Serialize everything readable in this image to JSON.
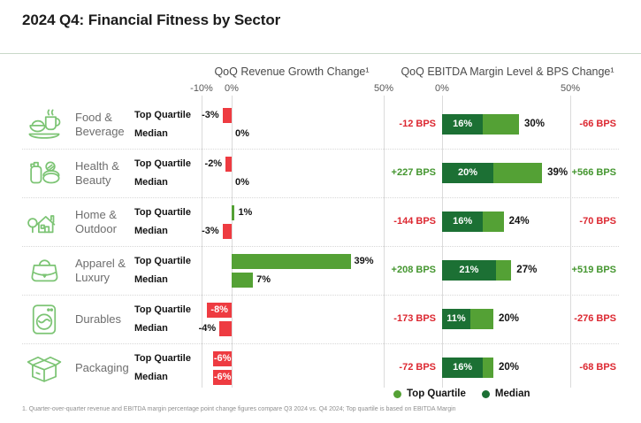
{
  "title": "2024 Q4: Financial Fitness by Sector",
  "headers": {
    "left": "QoQ Revenue Growth Change¹",
    "right": "QoQ EBITDA Margin Level & BPS Change¹"
  },
  "axis": {
    "left_ticks": [
      "-10%",
      "0%",
      "50%"
    ],
    "right_ticks": [
      "0%",
      "50%"
    ]
  },
  "series_labels": {
    "top": "Top Quartile",
    "bottom": "Median"
  },
  "legend": {
    "top_quartile": "Top Quartile",
    "median": "Median"
  },
  "footnote": "1. Quarter-over-quarter revenue and EBITDA margin percentage point change figures compare Q3 2024 vs. Q4 2024; Top quartile is based on EBITDA Margin",
  "colors": {
    "positive_bar": "#54a135",
    "negative_bar": "#ee3b41",
    "median_segment": "#1c7034",
    "top_quartile_segment": "#54a135",
    "positive_text": "#44962f",
    "negative_text": "#dc2730",
    "icon_stroke": "#7cc474"
  },
  "rows": [
    {
      "sector": "Food & Beverage",
      "sector_lines": [
        "Food &",
        "Beverage"
      ],
      "icon": "food-beverage",
      "revenue": {
        "top_quartile": {
          "value": -3,
          "label": "-3%",
          "inside": false
        },
        "median": {
          "value": 0,
          "label": "0%",
          "inside": false
        }
      },
      "ebitda": {
        "median": 16,
        "median_label": "16%",
        "top_quartile": 30,
        "top_quartile_label": "30%",
        "bps_left": {
          "text": "-12 BPS",
          "sign": "negative"
        },
        "bps_right": {
          "text": "-66 BPS",
          "sign": "negative"
        }
      }
    },
    {
      "sector": "Health & Beauty",
      "sector_lines": [
        "Health &",
        "Beauty"
      ],
      "icon": "health-beauty",
      "revenue": {
        "top_quartile": {
          "value": -2,
          "label": "-2%",
          "inside": false
        },
        "median": {
          "value": 0,
          "label": "0%",
          "inside": false
        }
      },
      "ebitda": {
        "median": 20,
        "median_label": "20%",
        "top_quartile": 39,
        "top_quartile_label": "39%",
        "bps_left": {
          "text": "+227 BPS",
          "sign": "positive"
        },
        "bps_right": {
          "text": "+566 BPS",
          "sign": "positive"
        }
      }
    },
    {
      "sector": "Home & Outdoor",
      "sector_lines": [
        "Home &",
        "Outdoor"
      ],
      "icon": "home-outdoor",
      "revenue": {
        "top_quartile": {
          "value": 1,
          "label": "1%",
          "inside": false
        },
        "median": {
          "value": -3,
          "label": "-3%",
          "inside": false
        }
      },
      "ebitda": {
        "median": 16,
        "median_label": "16%",
        "top_quartile": 24,
        "top_quartile_label": "24%",
        "bps_left": {
          "text": "-144 BPS",
          "sign": "negative"
        },
        "bps_right": {
          "text": "-70 BPS",
          "sign": "negative"
        }
      }
    },
    {
      "sector": "Apparel & Luxury",
      "sector_lines": [
        "Apparel &",
        "Luxury"
      ],
      "icon": "apparel-luxury",
      "revenue": {
        "top_quartile": {
          "value": 39,
          "label": "39%",
          "inside": false
        },
        "median": {
          "value": 7,
          "label": "7%",
          "inside": false
        }
      },
      "ebitda": {
        "median": 21,
        "median_label": "21%",
        "top_quartile": 27,
        "top_quartile_label": "27%",
        "bps_left": {
          "text": "+208 BPS",
          "sign": "positive"
        },
        "bps_right": {
          "text": "+519 BPS",
          "sign": "positive"
        }
      }
    },
    {
      "sector": "Durables",
      "sector_lines": [
        "Durables"
      ],
      "icon": "durables",
      "revenue": {
        "top_quartile": {
          "value": -8,
          "label": "-8%",
          "inside": true
        },
        "median": {
          "value": -4,
          "label": "-4%",
          "inside": false
        }
      },
      "ebitda": {
        "median": 11,
        "median_label": "11%",
        "top_quartile": 20,
        "top_quartile_label": "20%",
        "bps_left": {
          "text": "-173 BPS",
          "sign": "negative"
        },
        "bps_right": {
          "text": "-276 BPS",
          "sign": "negative"
        }
      }
    },
    {
      "sector": "Packaging",
      "sector_lines": [
        "Packaging"
      ],
      "icon": "packaging",
      "revenue": {
        "top_quartile": {
          "value": -6,
          "label": "-6%",
          "inside": true
        },
        "median": {
          "value": -6,
          "label": "-6%",
          "inside": true
        }
      },
      "ebitda": {
        "median": 16,
        "median_label": "16%",
        "top_quartile": 20,
        "top_quartile_label": "20%",
        "bps_left": {
          "text": "-72 BPS",
          "sign": "negative"
        },
        "bps_right": {
          "text": "-68 BPS",
          "sign": "negative"
        }
      }
    }
  ],
  "chart_data": [
    {
      "type": "bar",
      "title": "QoQ Revenue Growth Change¹",
      "orientation": "horizontal",
      "unit": "%",
      "axis_ticks": [
        -10,
        0,
        50
      ],
      "axis_range": [
        -10,
        50
      ],
      "grid": "vertical-lines-at-ticks",
      "categories": [
        "Food & Beverage",
        "Health & Beauty",
        "Home & Outdoor",
        "Apparel & Luxury",
        "Durables",
        "Packaging"
      ],
      "series": [
        {
          "name": "Top Quartile",
          "values": [
            -3,
            -2,
            1,
            39,
            -8,
            -6
          ]
        },
        {
          "name": "Median",
          "values": [
            0,
            0,
            -3,
            7,
            -4,
            -6
          ]
        }
      ],
      "positive_color": "#54a135",
      "negative_color": "#ee3b41"
    },
    {
      "type": "bar",
      "title": "QoQ EBITDA Margin Level & BPS Change¹",
      "orientation": "horizontal",
      "unit": "%",
      "axis_ticks": [
        0,
        50
      ],
      "axis_range": [
        0,
        60
      ],
      "grid": "vertical-lines-at-ticks",
      "categories": [
        "Food & Beverage",
        "Health & Beauty",
        "Home & Outdoor",
        "Apparel & Luxury",
        "Durables",
        "Packaging"
      ],
      "series": [
        {
          "name": "Median",
          "values": [
            16,
            20,
            16,
            21,
            11,
            16
          ]
        },
        {
          "name": "Top Quartile",
          "values": [
            30,
            39,
            24,
            27,
            20,
            20
          ]
        }
      ],
      "bps_change_left": [
        "-12 BPS",
        "+227 BPS",
        "-144 BPS",
        "+208 BPS",
        "-173 BPS",
        "-72 BPS"
      ],
      "bps_change_right": [
        "-66 BPS",
        "+566 BPS",
        "-70 BPS",
        "+519 BPS",
        "-276 BPS",
        "-68 BPS"
      ],
      "legend": [
        "Top Quartile",
        "Median"
      ],
      "legend_position": "bottom-right"
    }
  ]
}
